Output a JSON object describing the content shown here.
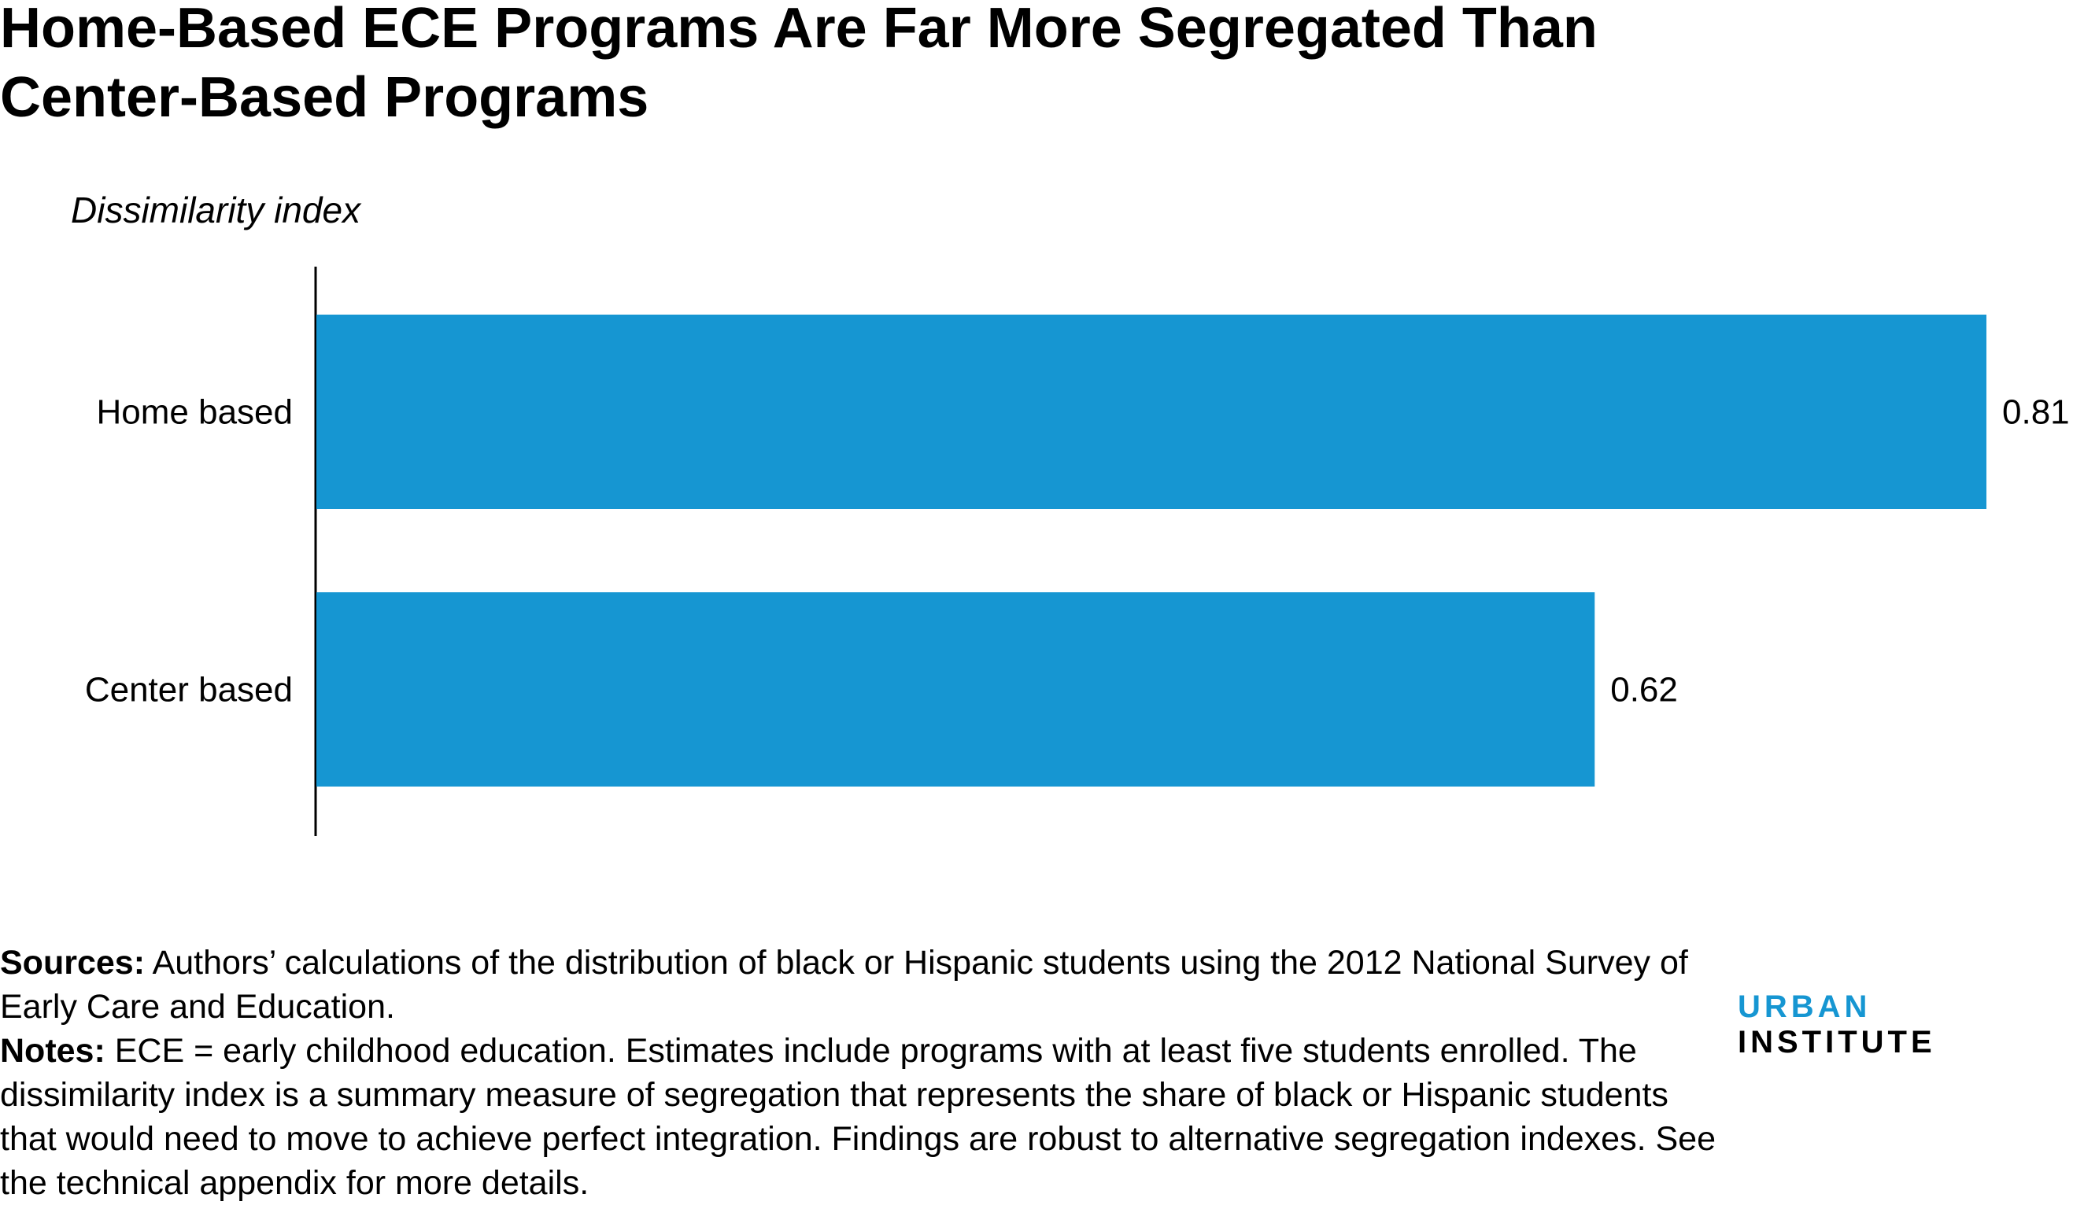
{
  "title": "Home-Based ECE Programs Are Far More Segregated Than Center-Based Programs",
  "chart_data": {
    "type": "bar",
    "orientation": "horizontal",
    "ylabel": "Dissimilarity index",
    "categories": [
      "Home based",
      "Center based"
    ],
    "values": [
      0.81,
      0.62
    ],
    "value_labels": [
      "0.81",
      "0.62"
    ],
    "xlim": [
      0,
      0.81
    ],
    "grid": false,
    "bar_color": "#1696d2"
  },
  "notes": {
    "sources_label": "Sources:",
    "sources_text": " Authors’ calculations of the distribution of black or Hispanic students using the 2012 National Survey of Early Care and Education.",
    "notes_label": "Notes:",
    "notes_text": " ECE = early childhood education. Estimates include programs with at least five students enrolled. The dissimilarity index is a summary measure of segregation that represents the share of black or Hispanic students that would need to move to achieve perfect integration. Findings are robust to alternative segregation indexes. See the technical appendix for more details."
  },
  "logo": {
    "part1": "URBAN",
    "part2": "INSTITUTE",
    "color1": "#1696d2",
    "color2": "#000000"
  }
}
